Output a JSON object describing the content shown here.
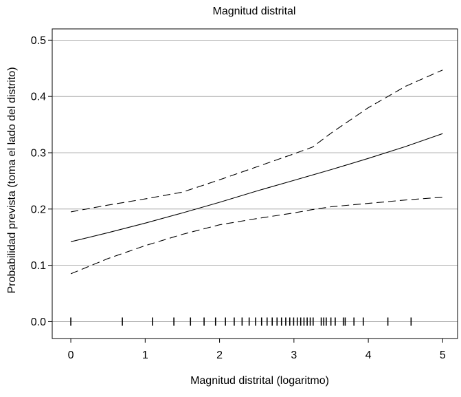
{
  "chart_data": {
    "type": "line",
    "title": "Magnitud distrital",
    "xlabel": "Magnitud distrital (logaritmo)",
    "ylabel": "Probabilidad prevista (toma el lado del distrito)",
    "xlim": [
      -0.25,
      5.2
    ],
    "ylim": [
      -0.03,
      0.52
    ],
    "x_ticks": [
      0,
      1,
      2,
      3,
      4,
      5
    ],
    "x_tick_labels": [
      "0",
      "1",
      "2",
      "3",
      "4",
      "5"
    ],
    "y_ticks": [
      0.0,
      0.1,
      0.2,
      0.3,
      0.4,
      0.5
    ],
    "y_tick_labels": [
      "0.0",
      "0.1",
      "0.2",
      "0.3",
      "0.4",
      "0.5"
    ],
    "grid": "horizontal",
    "series": [
      {
        "line_style": "solid",
        "x": [
          0,
          0.5,
          1.0,
          1.5,
          2.0,
          2.5,
          3.0,
          3.5,
          4.0,
          4.5,
          5.0
        ],
        "values": [
          0.142,
          0.158,
          0.175,
          0.193,
          0.212,
          0.232,
          0.251,
          0.27,
          0.29,
          0.311,
          0.334
        ]
      },
      {
        "line_style": "dashed",
        "x": [
          0,
          0.5,
          1.0,
          1.5,
          2.0,
          2.5,
          3.0,
          3.25,
          3.5,
          4.0,
          4.5,
          5.0
        ],
        "values": [
          0.195,
          0.207,
          0.218,
          0.23,
          0.252,
          0.275,
          0.298,
          0.31,
          0.335,
          0.38,
          0.418,
          0.447
        ]
      },
      {
        "line_style": "dashed",
        "x": [
          0,
          0.5,
          1.0,
          1.5,
          2.0,
          2.5,
          3.0,
          3.25,
          3.5,
          4.0,
          4.5,
          5.0
        ],
        "values": [
          0.085,
          0.112,
          0.135,
          0.155,
          0.172,
          0.183,
          0.193,
          0.199,
          0.204,
          0.21,
          0.216,
          0.221
        ]
      }
    ],
    "rug": {
      "y": 0.0,
      "x": [
        0.0,
        0.693,
        1.099,
        1.386,
        1.609,
        1.792,
        1.946,
        2.079,
        2.197,
        2.303,
        2.398,
        2.485,
        2.565,
        2.639,
        2.708,
        2.773,
        2.833,
        2.89,
        2.944,
        2.996,
        3.045,
        3.091,
        3.135,
        3.178,
        3.219,
        3.258,
        3.367,
        3.401,
        3.434,
        3.497,
        3.555,
        3.664,
        3.689,
        3.807,
        3.932,
        4.263,
        4.575
      ]
    }
  }
}
